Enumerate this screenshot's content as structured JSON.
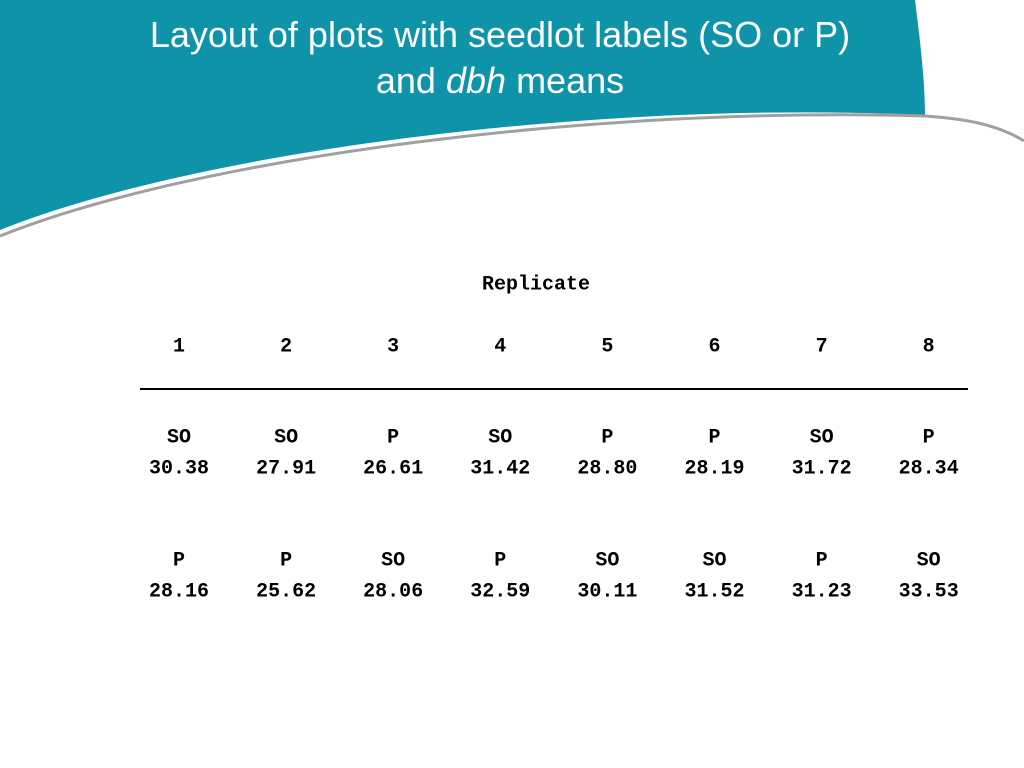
{
  "title": {
    "line1": "Layout of plots with seedlot labels (SO or P)",
    "line2_before": "and",
    "line2_italic": "dbh",
    "line2_after": "means"
  },
  "table": {
    "header": "Replicate",
    "columns": [
      1,
      2,
      3,
      4,
      5,
      6,
      7,
      8
    ],
    "rows": [
      [
        "SO",
        "SO",
        "P",
        "SO",
        "P",
        "P",
        "SO",
        "P"
      ],
      [
        "30.38",
        "27.91",
        "26.61",
        "31.42",
        "28.80",
        "28.19",
        "31.72",
        "28.34"
      ],
      [
        "P",
        "P",
        "SO",
        "P",
        "SO",
        "SO",
        "P",
        "SO"
      ],
      [
        "28.16",
        "25.62",
        "28.06",
        "32.59",
        "30.11",
        "31.52",
        "31.23",
        "33.53"
      ]
    ]
  }
}
